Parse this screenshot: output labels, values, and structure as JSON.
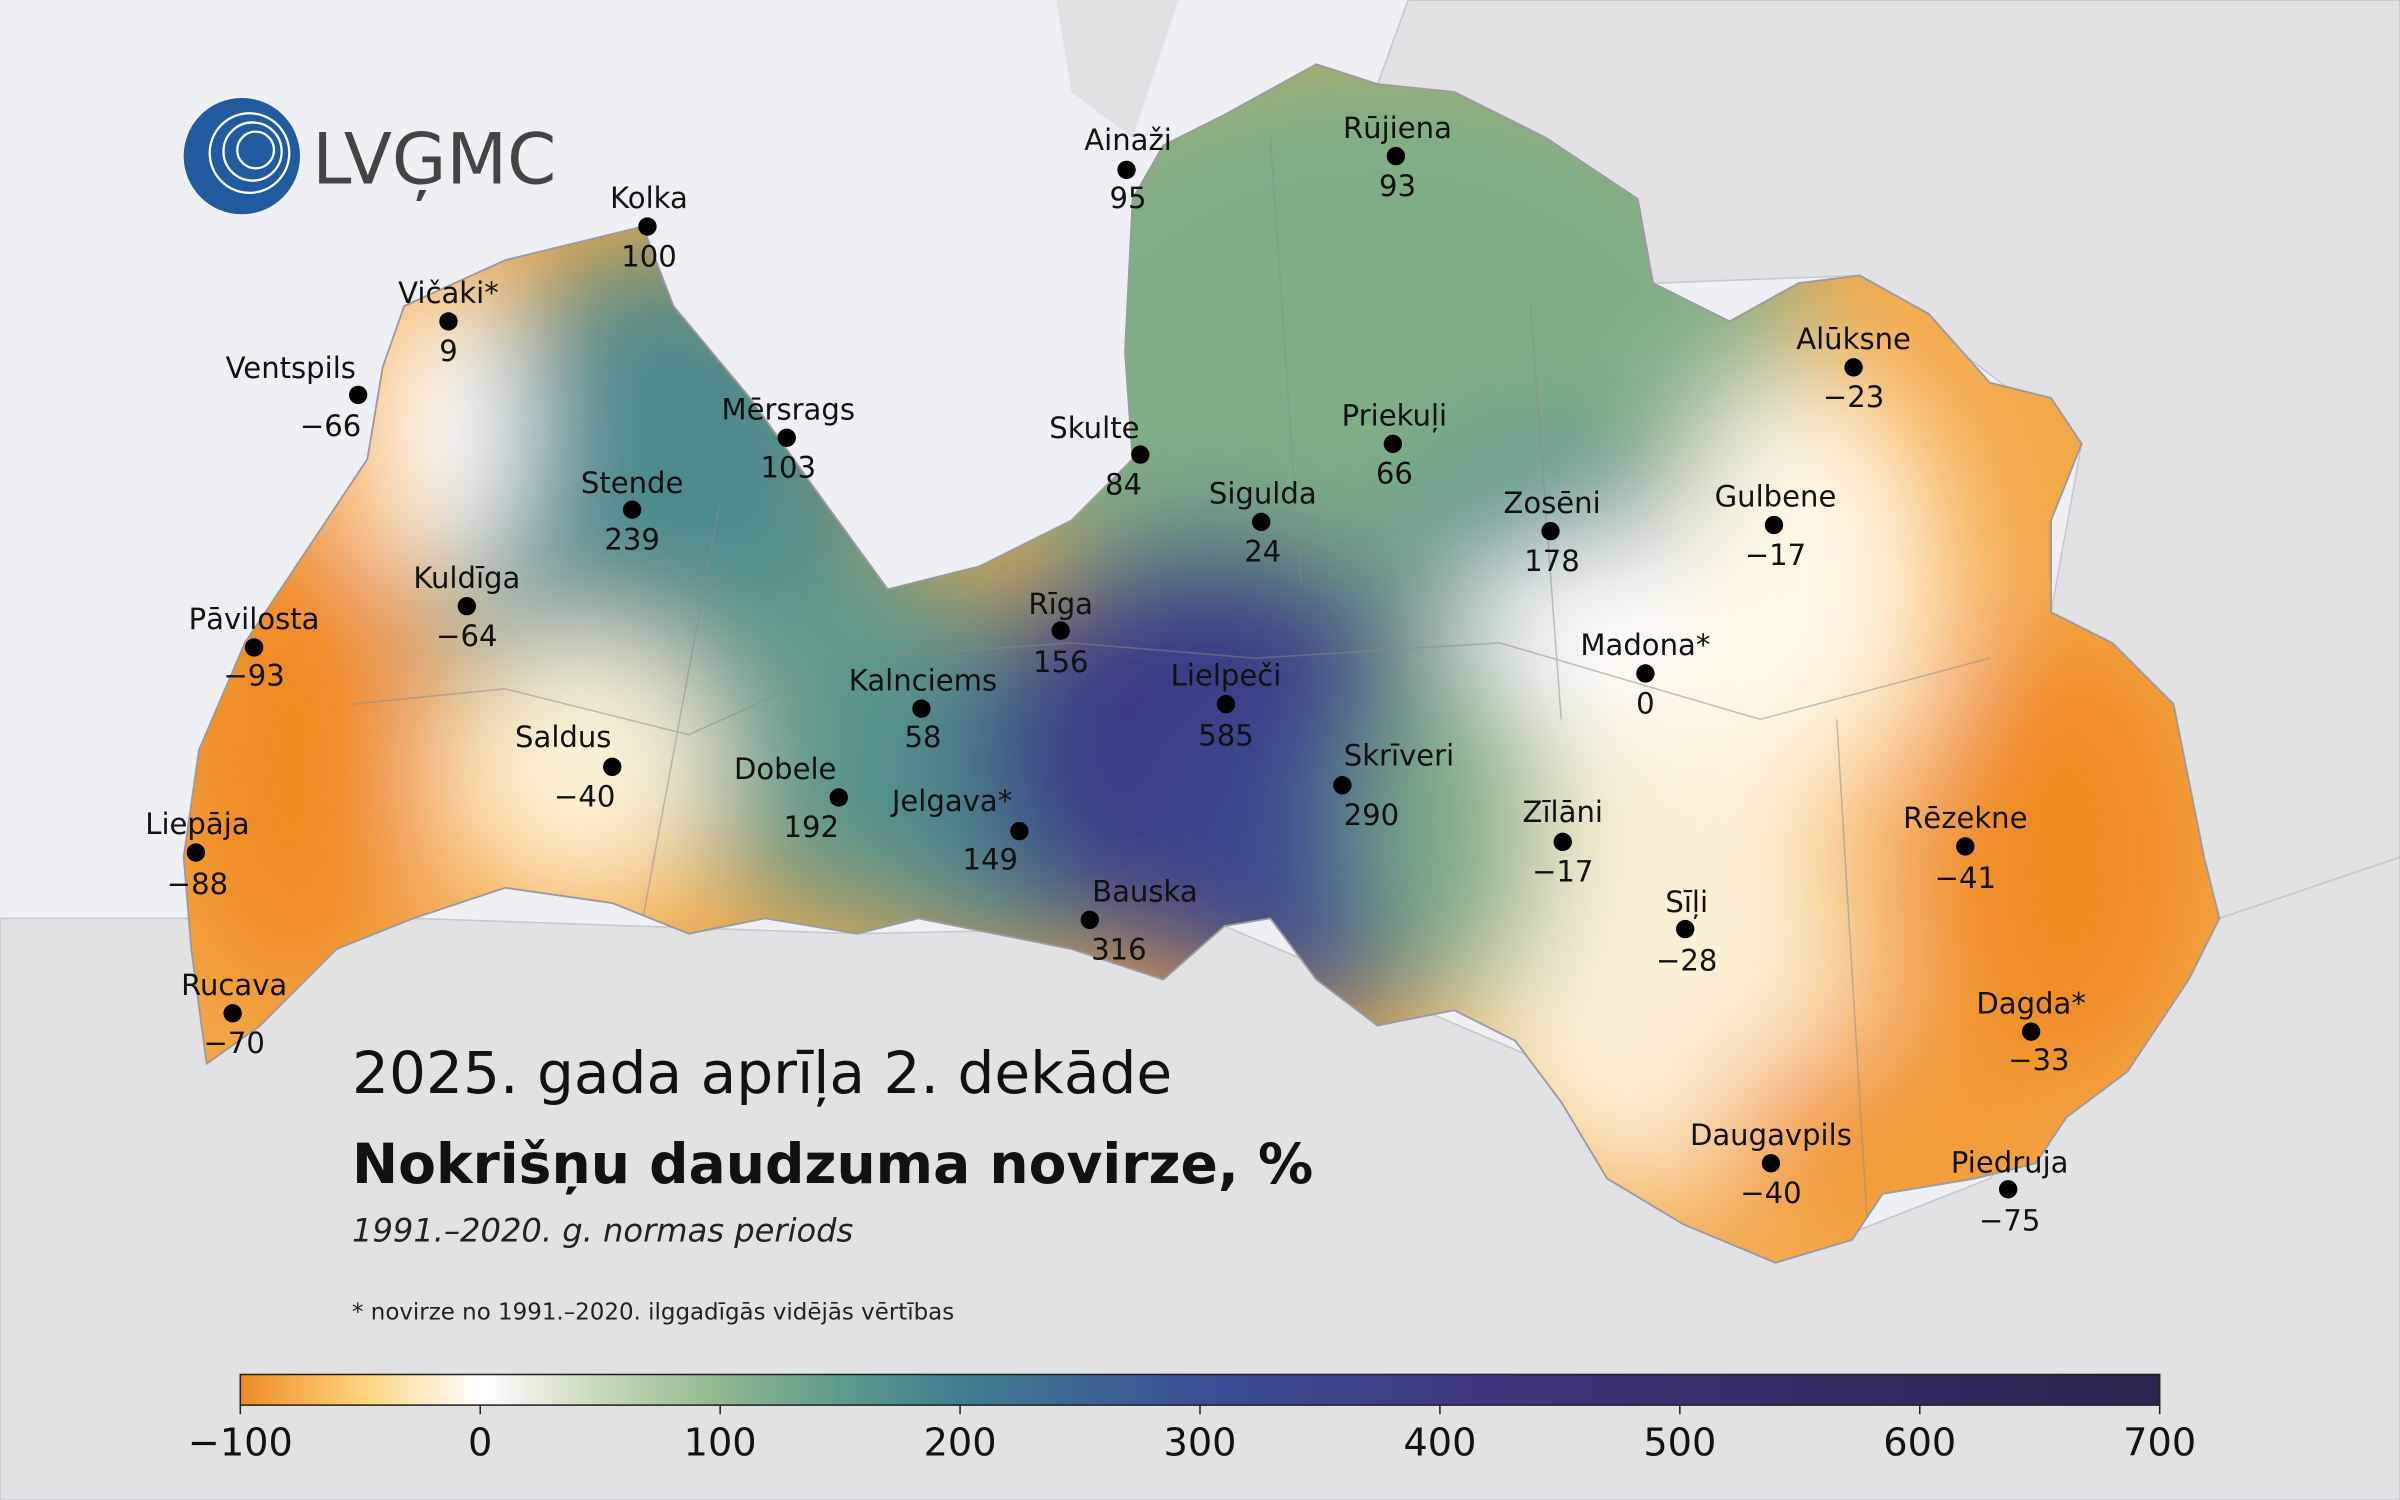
{
  "logo": "LVĢMC",
  "title": "2025. gada aprīļa 2. dekāde",
  "subtitle": "Nokrišņu daudzuma novirze, %",
  "period": "1991.–2020. g. normas periods",
  "note": "* novirze no 1991.–2020. ilggadīgās vidējās vērtības",
  "stations": [
    {
      "name": "Kolka",
      "value": "100"
    },
    {
      "name": "Ainaži",
      "value": "95"
    },
    {
      "name": "Rūjiena",
      "value": "93"
    },
    {
      "name": "Vičaki*",
      "value": "9"
    },
    {
      "name": "Ventspils",
      "value": "−66"
    },
    {
      "name": "Mērsrags",
      "value": "103"
    },
    {
      "name": "Skulte",
      "value": "84"
    },
    {
      "name": "Priekuļi",
      "value": "66"
    },
    {
      "name": "Stende",
      "value": "239"
    },
    {
      "name": "Sigulda",
      "value": "24"
    },
    {
      "name": "Zosēni",
      "value": "178"
    },
    {
      "name": "Gulbene",
      "value": "−17"
    },
    {
      "name": "Alūksne",
      "value": "−23"
    },
    {
      "name": "Kuldīga",
      "value": "−64"
    },
    {
      "name": "Pāvilosta",
      "value": "−93"
    },
    {
      "name": "Rīga",
      "value": "156"
    },
    {
      "name": "Madona*",
      "value": "0"
    },
    {
      "name": "Lielpeči",
      "value": "585"
    },
    {
      "name": "Kalnciems",
      "value": "58"
    },
    {
      "name": "Saldus",
      "value": "−40"
    },
    {
      "name": "Skrīveri",
      "value": "290"
    },
    {
      "name": "Dobele",
      "value": "192"
    },
    {
      "name": "Jelgava*",
      "value": "149"
    },
    {
      "name": "Zīlāni",
      "value": "−17"
    },
    {
      "name": "Liepāja",
      "value": "−88"
    },
    {
      "name": "Rēzekne",
      "value": "−41"
    },
    {
      "name": "Sīļi",
      "value": "−28"
    },
    {
      "name": "Bauska",
      "value": "316"
    },
    {
      "name": "Rucava",
      "value": "−70"
    },
    {
      "name": "Dagda*",
      "value": "−33"
    },
    {
      "name": "Daugavpils",
      "value": "−40"
    },
    {
      "name": "Piedruja",
      "value": "−75"
    }
  ],
  "colorbar": {
    "ticks": [
      {
        "value": -100,
        "label": "−100"
      },
      0,
      100,
      200,
      300,
      400,
      500,
      600,
      700
    ]
  }
}
